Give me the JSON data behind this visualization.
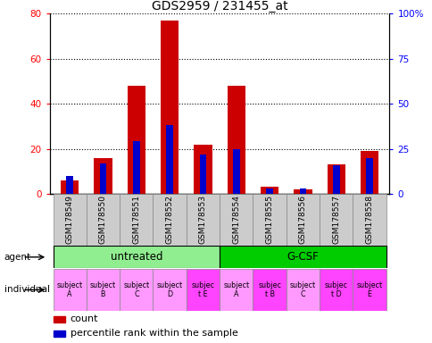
{
  "title": "GDS2959 / 231455_at",
  "samples": [
    "GSM178549",
    "GSM178550",
    "GSM178551",
    "GSM178552",
    "GSM178553",
    "GSM178554",
    "GSM178555",
    "GSM178556",
    "GSM178557",
    "GSM178558"
  ],
  "count_values": [
    6,
    16,
    48,
    77,
    22,
    48,
    3,
    2,
    13,
    19
  ],
  "percentile_values": [
    10,
    17,
    29,
    38,
    22,
    25,
    3,
    3,
    16,
    20
  ],
  "left_ylim": [
    0,
    80
  ],
  "right_ylim": [
    0,
    100
  ],
  "left_yticks": [
    0,
    20,
    40,
    60,
    80
  ],
  "right_yticks": [
    0,
    25,
    50,
    75,
    100
  ],
  "right_yticklabels": [
    "0",
    "25",
    "50",
    "75",
    "100%"
  ],
  "agent_groups": [
    {
      "label": "untreated",
      "start": 0,
      "end": 5,
      "color": "#90EE90"
    },
    {
      "label": "G-CSF",
      "start": 5,
      "end": 10,
      "color": "#00CC00"
    }
  ],
  "individuals": [
    "subject\nA",
    "subject\nB",
    "subject\nC",
    "subject\nD",
    "subjec\nt E",
    "subject\nA",
    "subjec\nt B",
    "subject\nC",
    "subjec\nt D",
    "subject\nE"
  ],
  "individual_colors": [
    "#FF99FF",
    "#FF99FF",
    "#FF99FF",
    "#FF99FF",
    "#FF44FF",
    "#FF99FF",
    "#FF44FF",
    "#FF99FF",
    "#FF44FF",
    "#FF44FF"
  ],
  "bar_color_red": "#CC0000",
  "bar_color_blue": "#0000CC",
  "bar_width": 0.55,
  "blue_bar_width": 0.2
}
